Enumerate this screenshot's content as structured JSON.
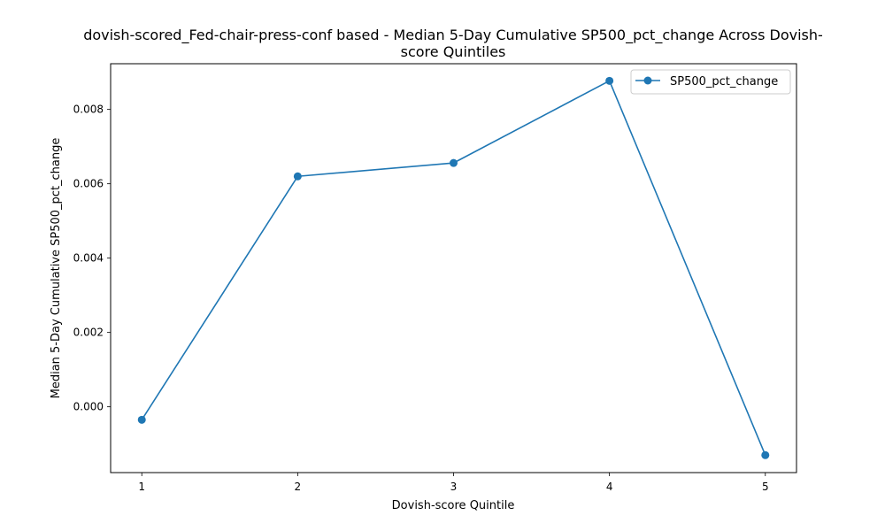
{
  "chart_data": {
    "type": "line",
    "title_line1": "dovish-scored_Fed-chair-press-conf based - Median 5-Day Cumulative SP500_pct_change Across Dovish-",
    "title_line2": "score Quintiles",
    "xlabel": "Dovish-score Quintile",
    "ylabel": "Median 5-Day Cumulative SP500_pct_change",
    "x": [
      1,
      2,
      3,
      4,
      5
    ],
    "x_tick_labels": [
      "1",
      "2",
      "3",
      "4",
      "5"
    ],
    "xlim": [
      0.8,
      5.2
    ],
    "ylim": [
      -0.00177,
      0.00923
    ],
    "y_ticks": [
      0.0,
      0.002,
      0.004,
      0.006,
      0.008
    ],
    "y_tick_labels": [
      "0.000",
      "0.002",
      "0.004",
      "0.006",
      "0.008"
    ],
    "grid": false,
    "legend_position": "top-right",
    "series": [
      {
        "name": "SP500_pct_change",
        "color": "#1f77b4",
        "marker": "circle",
        "values": [
          -0.00035,
          0.0062,
          0.00656,
          0.00877,
          -0.0013
        ]
      }
    ]
  }
}
